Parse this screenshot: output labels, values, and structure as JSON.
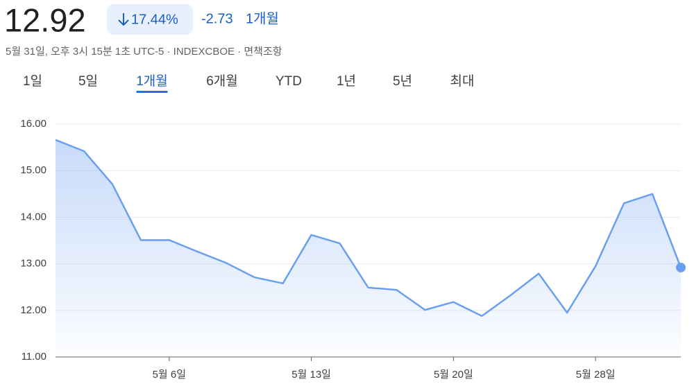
{
  "header": {
    "price": "12.92",
    "change_percent": "17.44%",
    "change": "-2.73",
    "period": "1개월",
    "subtitle": "5월 31일, 오후 3시 15분 1초 UTC-5 · INDEXCBOE · 면책조항"
  },
  "tabs": {
    "items": [
      "1일",
      "5일",
      "1개월",
      "6개월",
      "YTD",
      "1년",
      "5년",
      "최대"
    ],
    "selected": 2
  },
  "chart_data": {
    "type": "line",
    "categories": [
      null,
      null,
      null,
      null,
      "5월 6일",
      null,
      null,
      null,
      null,
      "5월 13일",
      null,
      null,
      null,
      null,
      "5월 20일",
      null,
      null,
      null,
      null,
      "5월 28일",
      null,
      null,
      null
    ],
    "series": [
      {
        "name": null,
        "color": "#6a9ff0",
        "values": [
          15.66,
          15.42,
          14.71,
          13.51,
          13.51,
          13.26,
          13.02,
          12.71,
          12.58,
          13.62,
          13.44,
          12.49,
          12.44,
          12.01,
          12.18,
          11.88,
          12.32,
          12.79,
          11.95,
          12.95,
          14.3,
          14.5,
          12.92
        ]
      }
    ],
    "ylim": [
      11,
      16
    ],
    "yticks": [
      {
        "value": 11,
        "label": "11.00"
      },
      {
        "value": 12,
        "label": "12.00"
      },
      {
        "value": 13,
        "label": "13.00"
      },
      {
        "value": 14,
        "label": "14.00"
      },
      {
        "value": 15,
        "label": "15.00"
      },
      {
        "value": 16,
        "label": "16.00"
      }
    ],
    "grid": true
  }
}
